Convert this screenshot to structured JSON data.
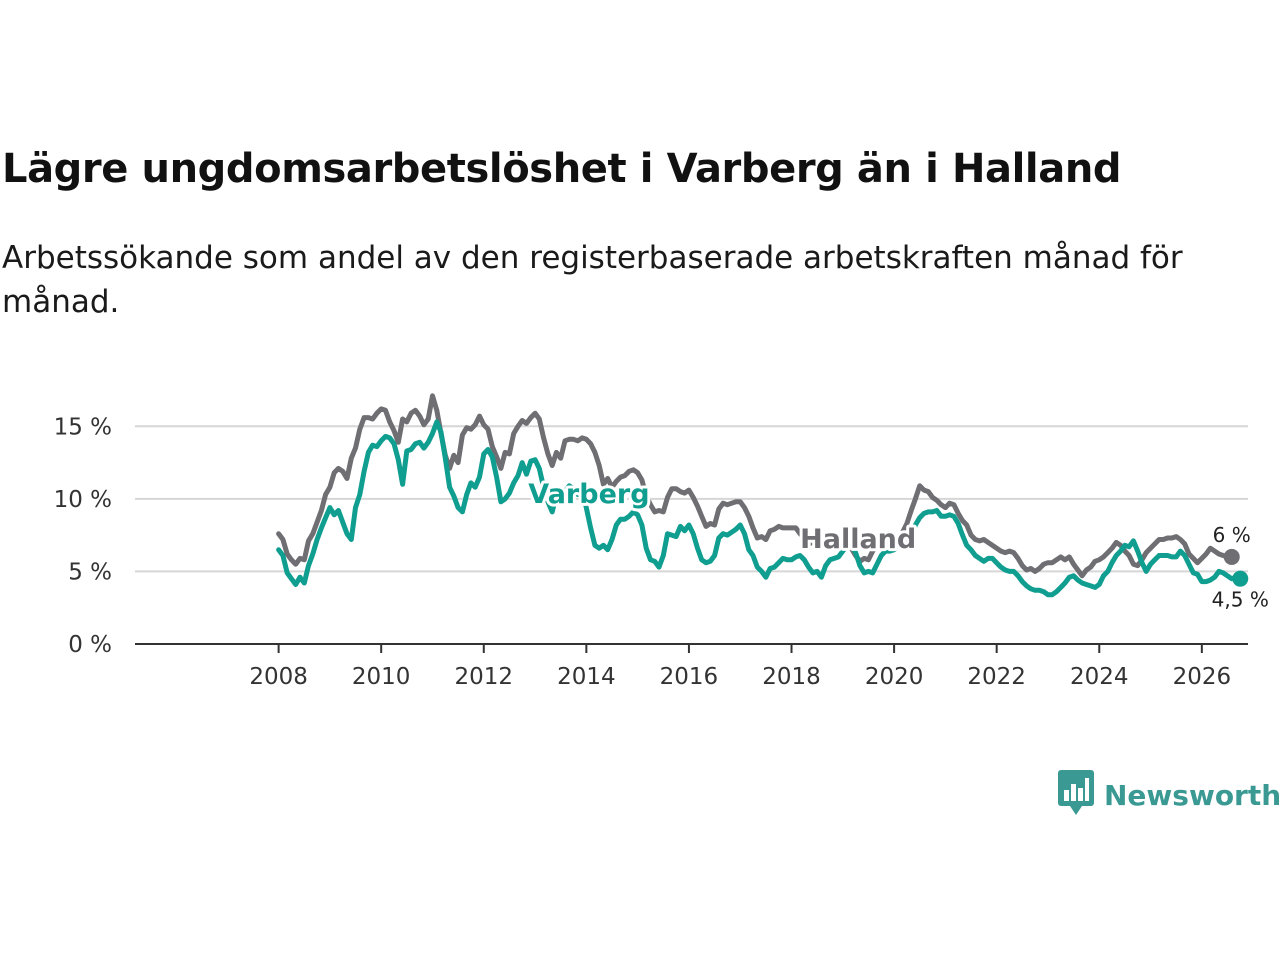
{
  "title": "Lägre ungdomsarbetslöshet i Varberg än i Halland",
  "subtitle": "Arbetssökande som andel av den registerbaserade arbetskraften månad för månad.",
  "brand": {
    "name": "Newsworthy",
    "icon": "newsworthy-chart-logo-icon",
    "color": "#3a9a93"
  },
  "chart_data": {
    "type": "line",
    "x_start": 2008.0,
    "x_step": 0.08333,
    "xlim": [
      2005.2,
      2026.9
    ],
    "ylim": [
      0,
      17.5
    ],
    "y_ticks": [
      0,
      5,
      10,
      15
    ],
    "y_tick_labels": [
      "0 %",
      "5 %",
      "10 %",
      "15 %"
    ],
    "x_ticks": [
      2008,
      2010,
      2012,
      2014,
      2016,
      2018,
      2020,
      2022,
      2024,
      2026
    ],
    "x_tick_labels": [
      "2008",
      "2010",
      "2012",
      "2014",
      "2016",
      "2018",
      "2020",
      "2022",
      "2024",
      "2026"
    ],
    "grid": true,
    "series": [
      {
        "name": "Halland",
        "color": "#6e6e73",
        "label": "Halland",
        "end_label": "6 %",
        "values": [
          7.6,
          7.2,
          6.2,
          5.8,
          5.5,
          5.9,
          5.8,
          7.1,
          7.6,
          8.4,
          9.2,
          10.3,
          10.8,
          11.8,
          12.1,
          11.9,
          11.4,
          12.8,
          13.5,
          14.8,
          15.6,
          15.6,
          15.5,
          15.9,
          16.2,
          16.1,
          15.3,
          14.7,
          13.9,
          15.5,
          15.3,
          15.9,
          16.1,
          15.7,
          15.1,
          15.5,
          17.1,
          16.1,
          14.5,
          13.0,
          12.1,
          13.0,
          12.5,
          14.4,
          14.9,
          14.8,
          15.1,
          15.7,
          15.1,
          14.8,
          13.6,
          12.9,
          12.1,
          13.2,
          13.1,
          14.5,
          15.0,
          15.4,
          15.2,
          15.6,
          15.9,
          15.5,
          14.2,
          13.1,
          12.3,
          13.2,
          12.8,
          14.0,
          14.1,
          14.1,
          14.0,
          14.2,
          14.1,
          13.8,
          13.2,
          12.3,
          11.0,
          11.4,
          10.8,
          11.2,
          11.5,
          11.6,
          11.9,
          12.0,
          11.8,
          11.3,
          10.2,
          9.6,
          9.1,
          9.2,
          9.1,
          10.1,
          10.7,
          10.7,
          10.5,
          10.4,
          10.6,
          10.1,
          9.5,
          8.8,
          8.1,
          8.3,
          8.2,
          9.3,
          9.7,
          9.6,
          9.7,
          9.8,
          9.8,
          9.4,
          8.8,
          8.0,
          7.3,
          7.4,
          7.2,
          7.8,
          7.9,
          8.1,
          8.0,
          8.0,
          8.0,
          8.0,
          7.6,
          7.3,
          6.9,
          7.0,
          6.6,
          7.0,
          7.1,
          6.9,
          6.8,
          6.8,
          6.9,
          6.8,
          6.6,
          6.1,
          5.7,
          5.9,
          5.8,
          6.4,
          6.9,
          7.1,
          7.3,
          7.1,
          7.4,
          7.2,
          7.7,
          8.3,
          9.2,
          10.0,
          10.9,
          10.6,
          10.5,
          10.1,
          9.9,
          9.6,
          9.4,
          9.7,
          9.6,
          9.0,
          8.5,
          8.2,
          7.5,
          7.2,
          7.1,
          7.2,
          7.0,
          6.8,
          6.6,
          6.4,
          6.3,
          6.4,
          6.3,
          5.9,
          5.4,
          5.1,
          5.2,
          5.0,
          5.2,
          5.5,
          5.6,
          5.6,
          5.8,
          6.0,
          5.8,
          6.0,
          5.5,
          5.1,
          4.7,
          5.1,
          5.3,
          5.7,
          5.8,
          6.0,
          6.3,
          6.6,
          7.0,
          6.8,
          6.4,
          6.1,
          5.5,
          5.4,
          5.8,
          6.3,
          6.6,
          6.9,
          7.2,
          7.2,
          7.3,
          7.3,
          7.4,
          7.2,
          6.9,
          6.2,
          5.9,
          5.6,
          5.9,
          6.2,
          6.6,
          6.4,
          6.2,
          6.1,
          6.0,
          6.0
        ]
      },
      {
        "name": "Varberg",
        "color": "#0f9e8f",
        "label": "Varberg",
        "end_label": "4,5 %",
        "values": [
          6.5,
          6.1,
          4.9,
          4.5,
          4.1,
          4.6,
          4.2,
          5.4,
          6.2,
          7.2,
          8.0,
          8.7,
          9.4,
          8.9,
          9.2,
          8.4,
          7.6,
          7.2,
          9.4,
          10.3,
          11.9,
          13.2,
          13.7,
          13.6,
          14.0,
          14.3,
          14.2,
          13.8,
          12.7,
          11.0,
          13.3,
          13.4,
          13.8,
          13.9,
          13.5,
          13.9,
          14.5,
          15.3,
          14.6,
          12.8,
          10.8,
          10.2,
          9.4,
          9.1,
          10.3,
          11.1,
          10.8,
          11.5,
          13.1,
          13.4,
          12.9,
          11.5,
          9.8,
          10.0,
          10.4,
          11.1,
          11.6,
          12.5,
          11.7,
          12.6,
          12.7,
          12.1,
          10.8,
          9.8,
          9.1,
          10.3,
          10.0,
          10.5,
          10.9,
          10.7,
          10.3,
          10.6,
          9.4,
          8.0,
          6.8,
          6.6,
          6.8,
          6.5,
          7.2,
          8.2,
          8.6,
          8.6,
          8.8,
          9.1,
          8.9,
          8.2,
          6.6,
          5.8,
          5.7,
          5.3,
          6.1,
          7.6,
          7.5,
          7.4,
          8.1,
          7.8,
          8.2,
          7.6,
          6.6,
          5.8,
          5.6,
          5.7,
          6.1,
          7.3,
          7.6,
          7.5,
          7.7,
          7.9,
          8.2,
          7.6,
          6.5,
          6.1,
          5.3,
          5.0,
          4.6,
          5.2,
          5.3,
          5.6,
          5.9,
          5.8,
          5.8,
          6.0,
          6.1,
          5.8,
          5.3,
          4.9,
          5.0,
          4.6,
          5.4,
          5.8,
          5.9,
          6.0,
          6.4,
          6.8,
          6.8,
          6.3,
          5.4,
          4.9,
          5.0,
          4.9,
          5.5,
          6.1,
          6.4,
          6.4,
          6.5,
          6.9,
          6.8,
          7.1,
          7.4,
          8.2,
          8.7,
          9.0,
          9.1,
          9.1,
          9.2,
          8.8,
          8.8,
          8.9,
          8.8,
          8.3,
          7.5,
          6.8,
          6.5,
          6.1,
          5.9,
          5.7,
          5.9,
          5.9,
          5.6,
          5.3,
          5.1,
          5.0,
          5.0,
          4.7,
          4.3,
          4.0,
          3.8,
          3.7,
          3.7,
          3.6,
          3.4,
          3.4,
          3.6,
          3.9,
          4.2,
          4.6,
          4.7,
          4.4,
          4.2,
          4.1,
          4.0,
          3.9,
          4.1,
          4.7,
          5.0,
          5.6,
          6.1,
          6.4,
          6.8,
          6.7,
          7.1,
          6.4,
          5.6,
          5.0,
          5.5,
          5.8,
          6.1,
          6.1,
          6.1,
          6.0,
          6.0,
          6.4,
          6.1,
          5.5,
          4.9,
          4.8,
          4.3,
          4.3,
          4.4,
          4.6,
          5.0,
          4.9,
          4.7,
          4.5,
          4.6,
          4.5
        ]
      }
    ]
  }
}
